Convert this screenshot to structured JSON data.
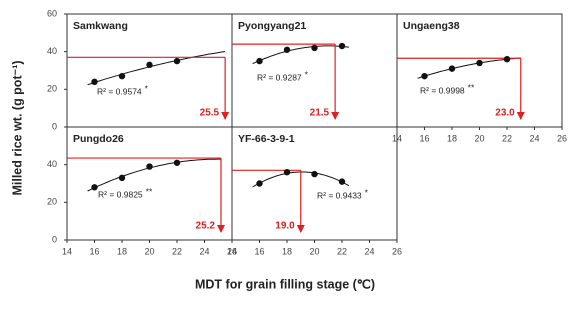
{
  "chart_data": [
    {
      "type": "scatter",
      "title": "Samkwang",
      "x": [
        16,
        18,
        20,
        22
      ],
      "values": [
        24,
        27,
        33,
        35
      ],
      "max_yield": 37,
      "optimum": {
        "value": 25.5,
        "label": "25.5"
      },
      "r2_label": "R² = 0.9574",
      "significance": "*",
      "xlim": [
        14,
        26
      ],
      "ylim": [
        0,
        60
      ],
      "yticks": [
        0,
        20,
        40,
        60
      ]
    },
    {
      "type": "scatter",
      "title": "Pyongyang21",
      "x": [
        16,
        18,
        20,
        22
      ],
      "values": [
        35,
        41,
        42,
        43
      ],
      "max_yield": 44,
      "optimum": {
        "value": 21.5,
        "label": "21.5"
      },
      "r2_label": "R² = 0.9287",
      "significance": "*",
      "xlim": [
        14,
        26
      ],
      "ylim": [
        0,
        60
      ]
    },
    {
      "type": "scatter",
      "title": "Ungaeng38",
      "x": [
        16,
        18,
        20,
        22
      ],
      "values": [
        27,
        31,
        34,
        36
      ],
      "max_yield": 36.5,
      "optimum": {
        "value": 23.0,
        "label": "23.0"
      },
      "r2_label": "R² = 0.9998",
      "significance": "**",
      "xlim": [
        14,
        26
      ],
      "ylim": [
        0,
        60
      ],
      "xticks": [
        14,
        16,
        18,
        20,
        22,
        24,
        26
      ]
    },
    {
      "type": "scatter",
      "title": "Pungdo26",
      "x": [
        16,
        18,
        20,
        22
      ],
      "values": [
        28,
        33,
        39,
        41
      ],
      "max_yield": 43.5,
      "optimum": {
        "value": 25.2,
        "label": "25.2"
      },
      "r2_label": "R² = 0.9825",
      "significance": "**",
      "xlim": [
        14,
        26
      ],
      "ylim": [
        0,
        60
      ],
      "yticks": [
        0,
        20,
        40
      ],
      "xticks": [
        14,
        16,
        18,
        20,
        22,
        24,
        26
      ]
    },
    {
      "type": "scatter",
      "title": "YF-66-3-9-1",
      "x": [
        16,
        18,
        20,
        22
      ],
      "values": [
        30,
        36,
        35,
        31
      ],
      "max_yield": 37,
      "optimum": {
        "value": 19.0,
        "label": "19.0"
      },
      "r2_label": "R² = 0.9433",
      "significance": "*",
      "xlim": [
        14,
        26
      ],
      "ylim": [
        0,
        60
      ],
      "xticks": [
        14,
        16,
        18,
        20,
        22,
        24,
        26
      ]
    }
  ],
  "y_label": "Milled rice wt. (g pot⁻¹)",
  "x_label": "MDT for grain filling stage (℃)"
}
